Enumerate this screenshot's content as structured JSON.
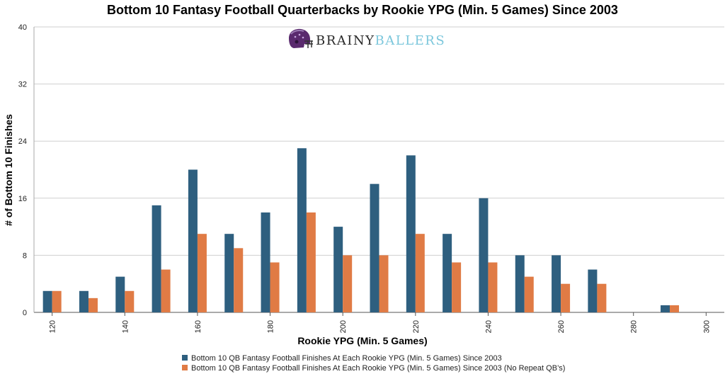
{
  "chart_data": {
    "type": "bar",
    "title": "Bottom 10 Fantasy Football Quarterbacks by Rookie YPG (Min. 5 Games) Since 2003",
    "xlabel": "Rookie YPG (Min. 5 Games)",
    "ylabel": "# of Bottom 10 Finishes",
    "ylim": [
      0,
      40
    ],
    "yticks": [
      0,
      8,
      16,
      24,
      32,
      40
    ],
    "xlim": [
      115,
      305
    ],
    "xticks": [
      120,
      140,
      160,
      180,
      200,
      220,
      240,
      260,
      280,
      300
    ],
    "categories": [
      120,
      130,
      140,
      150,
      160,
      170,
      180,
      190,
      200,
      210,
      220,
      230,
      240,
      250,
      260,
      270,
      280,
      290
    ],
    "series": [
      {
        "name": "Bottom 10 QB Fantasy Football Finishes At Each Rookie YPG (Min. 5 Games) Since 2003",
        "color": "#2e5f7f",
        "values": [
          3,
          3,
          5,
          15,
          20,
          11,
          14,
          23,
          12,
          18,
          22,
          11,
          16,
          8,
          8,
          6,
          0,
          1
        ]
      },
      {
        "name": "Bottom 10 QB Fantasy Football Finishes At Each Rookie YPG (Min. 5 Games) Since 2003 (No Repeat QB’s)",
        "color": "#e07b45",
        "values": [
          3,
          2,
          3,
          6,
          11,
          9,
          7,
          14,
          8,
          8,
          11,
          7,
          7,
          5,
          4,
          4,
          0,
          1
        ]
      }
    ],
    "grid": true,
    "legend_position": "bottom"
  },
  "logo": {
    "part1": "BRAINY",
    "part2": "BALLERS",
    "part1_color": "#2a2a2a",
    "part2_color": "#7cc7dc"
  }
}
